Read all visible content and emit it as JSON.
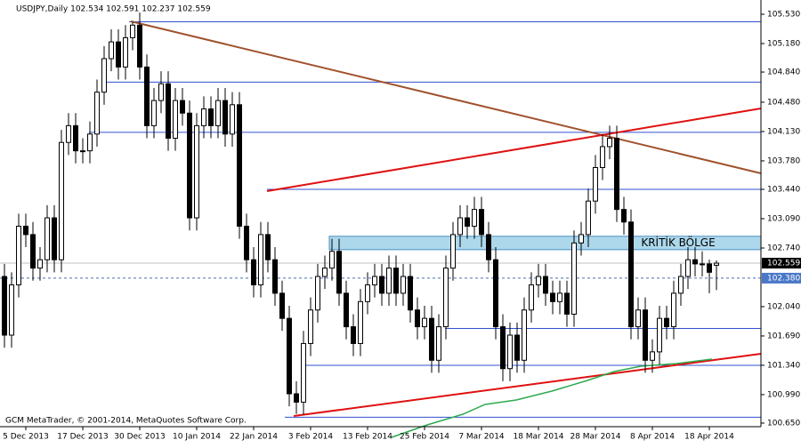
{
  "chart_data": {
    "type": "candlestick",
    "title": "USDJPY,Daily  102.534 102.591 102.237 102.559",
    "footer": "GCM MetaTrader, © 2001-2014, MetaQuotes Software Corp.",
    "ylim": [
      100.48,
      105.7
    ],
    "yticks": [
      {
        "value": 105.53,
        "label": "105.530"
      },
      {
        "value": 105.18,
        "label": "105.180"
      },
      {
        "value": 104.84,
        "label": "104.840"
      },
      {
        "value": 104.48,
        "label": "104.480"
      },
      {
        "value": 104.13,
        "label": "104.130"
      },
      {
        "value": 103.78,
        "label": "103.780"
      },
      {
        "value": 103.44,
        "label": "103.440"
      },
      {
        "value": 103.09,
        "label": "103.090"
      },
      {
        "value": 102.74,
        "label": "102.740"
      },
      {
        "value": 102.04,
        "label": "102.040"
      },
      {
        "value": 101.69,
        "label": "101.690"
      },
      {
        "value": 101.34,
        "label": "101.340"
      },
      {
        "value": 100.99,
        "label": "100.990"
      },
      {
        "value": 100.65,
        "label": "100.650"
      }
    ],
    "categories": [
      null,
      null,
      null,
      "5 Dec 2013",
      null,
      null,
      null,
      null,
      null,
      null,
      null,
      "17 Dec 2013",
      null,
      null,
      null,
      null,
      null,
      null,
      null,
      "30 Dec 2013",
      null,
      null,
      null,
      null,
      null,
      null,
      null,
      "10 Jan 2014",
      null,
      null,
      null,
      null,
      null,
      null,
      null,
      "22 Jan 2014",
      null,
      null,
      null,
      null,
      null,
      null,
      null,
      "3 Feb 2014",
      null,
      null,
      null,
      null,
      null,
      null,
      null,
      "13 Feb 2014",
      null,
      null,
      null,
      null,
      null,
      null,
      null,
      "25 Feb 2014",
      null,
      null,
      null,
      null,
      null,
      null,
      null,
      "7 Mar 2014",
      null,
      null,
      null,
      null,
      null,
      null,
      null,
      "18 Mar 2014",
      null,
      null,
      null,
      null,
      null,
      null,
      null,
      "28 Mar 2014",
      null,
      null,
      null,
      null,
      null,
      null,
      null,
      "8 Apr 2014",
      null,
      null,
      null,
      null,
      null,
      null,
      null,
      "18 Apr 2014",
      null
    ],
    "ohlc": [
      [
        102.4,
        102.55,
        101.55,
        101.7
      ],
      [
        101.7,
        102.45,
        101.55,
        102.3
      ],
      [
        102.3,
        103.15,
        102.15,
        103.0
      ],
      [
        103.0,
        103.15,
        102.75,
        102.9
      ],
      [
        102.9,
        103.05,
        102.35,
        102.5
      ],
      [
        102.5,
        102.75,
        102.35,
        102.6
      ],
      [
        102.6,
        103.25,
        102.45,
        103.1
      ],
      [
        103.1,
        103.25,
        102.45,
        102.6
      ],
      [
        102.6,
        104.15,
        102.45,
        104.0
      ],
      [
        104.0,
        104.35,
        103.85,
        104.2
      ],
      [
        104.2,
        104.35,
        103.75,
        103.9
      ],
      [
        103.9,
        104.05,
        103.75,
        103.9
      ],
      [
        103.9,
        104.25,
        103.75,
        104.1
      ],
      [
        104.1,
        104.75,
        103.95,
        104.6
      ],
      [
        104.6,
        105.15,
        104.45,
        105.0
      ],
      [
        105.0,
        105.35,
        104.85,
        105.2
      ],
      [
        105.2,
        105.35,
        104.75,
        104.9
      ],
      [
        104.9,
        105.4,
        104.75,
        105.25
      ],
      [
        105.25,
        105.44,
        105.1,
        105.4
      ],
      [
        105.4,
        105.55,
        104.75,
        104.9
      ],
      [
        104.9,
        105.05,
        104.05,
        104.2
      ],
      [
        104.2,
        104.65,
        104.05,
        104.5
      ],
      [
        104.5,
        104.85,
        104.35,
        104.7
      ],
      [
        104.7,
        104.85,
        103.9,
        104.05
      ],
      [
        104.05,
        104.65,
        103.9,
        104.5
      ],
      [
        104.5,
        104.65,
        104.2,
        104.35
      ],
      [
        104.35,
        104.5,
        102.95,
        103.1
      ],
      [
        103.1,
        104.35,
        102.95,
        104.2
      ],
      [
        104.2,
        104.55,
        104.05,
        104.4
      ],
      [
        104.4,
        104.55,
        104.05,
        104.2
      ],
      [
        104.2,
        104.65,
        104.05,
        104.5
      ],
      [
        104.5,
        104.65,
        103.95,
        104.1
      ],
      [
        104.1,
        104.6,
        103.95,
        104.45
      ],
      [
        104.45,
        104.6,
        102.85,
        103.0
      ],
      [
        103.0,
        103.15,
        102.45,
        102.6
      ],
      [
        102.6,
        102.75,
        102.15,
        102.3
      ],
      [
        102.3,
        103.05,
        102.15,
        102.9
      ],
      [
        102.9,
        103.05,
        102.45,
        102.6
      ],
      [
        102.6,
        102.75,
        102.05,
        102.2
      ],
      [
        102.2,
        102.35,
        101.75,
        101.9
      ],
      [
        101.9,
        102.05,
        100.85,
        101.0
      ],
      [
        101.0,
        101.15,
        100.76,
        100.9
      ],
      [
        100.9,
        101.75,
        100.75,
        101.6
      ],
      [
        101.6,
        102.15,
        101.45,
        102.0
      ],
      [
        102.0,
        102.55,
        101.85,
        102.4
      ],
      [
        102.4,
        102.65,
        102.25,
        102.5
      ],
      [
        102.5,
        102.85,
        102.35,
        102.7
      ],
      [
        102.7,
        102.85,
        102.05,
        102.2
      ],
      [
        102.2,
        102.35,
        101.65,
        101.8
      ],
      [
        101.8,
        101.95,
        101.45,
        101.6
      ],
      [
        101.6,
        102.25,
        101.45,
        102.1
      ],
      [
        102.1,
        102.45,
        101.95,
        102.3
      ],
      [
        102.3,
        102.55,
        102.15,
        102.4
      ],
      [
        102.4,
        102.55,
        102.05,
        102.2
      ],
      [
        102.2,
        102.65,
        102.05,
        102.5
      ],
      [
        102.5,
        102.65,
        102.05,
        102.2
      ],
      [
        102.2,
        102.55,
        102.05,
        102.4
      ],
      [
        102.4,
        102.55,
        101.85,
        102.0
      ],
      [
        102.0,
        102.15,
        101.65,
        101.8
      ],
      [
        101.8,
        102.05,
        101.65,
        101.9
      ],
      [
        101.9,
        102.05,
        101.25,
        101.4
      ],
      [
        101.4,
        101.95,
        101.25,
        101.8
      ],
      [
        101.8,
        102.65,
        101.65,
        102.5
      ],
      [
        102.5,
        103.05,
        102.35,
        102.9
      ],
      [
        102.9,
        103.25,
        102.75,
        103.1
      ],
      [
        103.1,
        103.25,
        102.85,
        103.0
      ],
      [
        103.0,
        103.35,
        102.85,
        103.2
      ],
      [
        103.2,
        103.35,
        102.75,
        102.9
      ],
      [
        102.9,
        103.05,
        102.45,
        102.6
      ],
      [
        102.6,
        102.75,
        101.65,
        101.8
      ],
      [
        101.8,
        101.95,
        101.15,
        101.3
      ],
      [
        101.3,
        101.85,
        101.15,
        101.7
      ],
      [
        101.7,
        101.85,
        101.25,
        101.4
      ],
      [
        101.4,
        102.15,
        101.25,
        102.0
      ],
      [
        102.0,
        102.45,
        101.85,
        102.3
      ],
      [
        102.3,
        102.55,
        102.15,
        102.4
      ],
      [
        102.4,
        102.55,
        102.05,
        102.2
      ],
      [
        102.2,
        102.35,
        101.95,
        102.1
      ],
      [
        102.1,
        102.35,
        101.95,
        102.2
      ],
      [
        102.2,
        102.35,
        101.8,
        101.95
      ],
      [
        101.95,
        102.95,
        101.8,
        102.8
      ],
      [
        102.8,
        103.05,
        102.65,
        102.9
      ],
      [
        102.9,
        103.45,
        102.75,
        103.3
      ],
      [
        103.3,
        103.85,
        103.15,
        103.7
      ],
      [
        103.7,
        104.1,
        103.55,
        103.95
      ],
      [
        103.95,
        104.2,
        103.8,
        104.05
      ],
      [
        104.05,
        104.2,
        103.05,
        103.2
      ],
      [
        103.2,
        103.35,
        102.9,
        103.05
      ],
      [
        103.05,
        103.2,
        101.65,
        101.8
      ],
      [
        101.8,
        102.15,
        101.65,
        102.0
      ],
      [
        102.0,
        102.15,
        101.25,
        101.4
      ],
      [
        101.4,
        101.65,
        101.25,
        101.5
      ],
      [
        101.5,
        102.05,
        101.35,
        101.9
      ],
      [
        101.9,
        102.05,
        101.65,
        101.8
      ],
      [
        101.8,
        102.35,
        101.65,
        102.2
      ],
      [
        102.2,
        102.55,
        102.05,
        102.4
      ],
      [
        102.4,
        102.75,
        102.25,
        102.6
      ],
      [
        102.6,
        102.75,
        102.4,
        102.55
      ],
      [
        102.55,
        102.7,
        102.4,
        102.55
      ],
      [
        102.55,
        102.6,
        102.2,
        102.45
      ],
      [
        102.534,
        102.591,
        102.237,
        102.559
      ]
    ],
    "levels": [
      105.44,
      104.72,
      104.12,
      103.44,
      101.78,
      101.34,
      100.72
    ],
    "zone": {
      "label": "KRİTİK BÖLGE",
      "top": 102.88,
      "bottom": 102.72
    },
    "last_price": {
      "value": 102.559,
      "label": "102.559"
    },
    "marker_price": {
      "value": 102.38,
      "label": "102.380"
    }
  }
}
